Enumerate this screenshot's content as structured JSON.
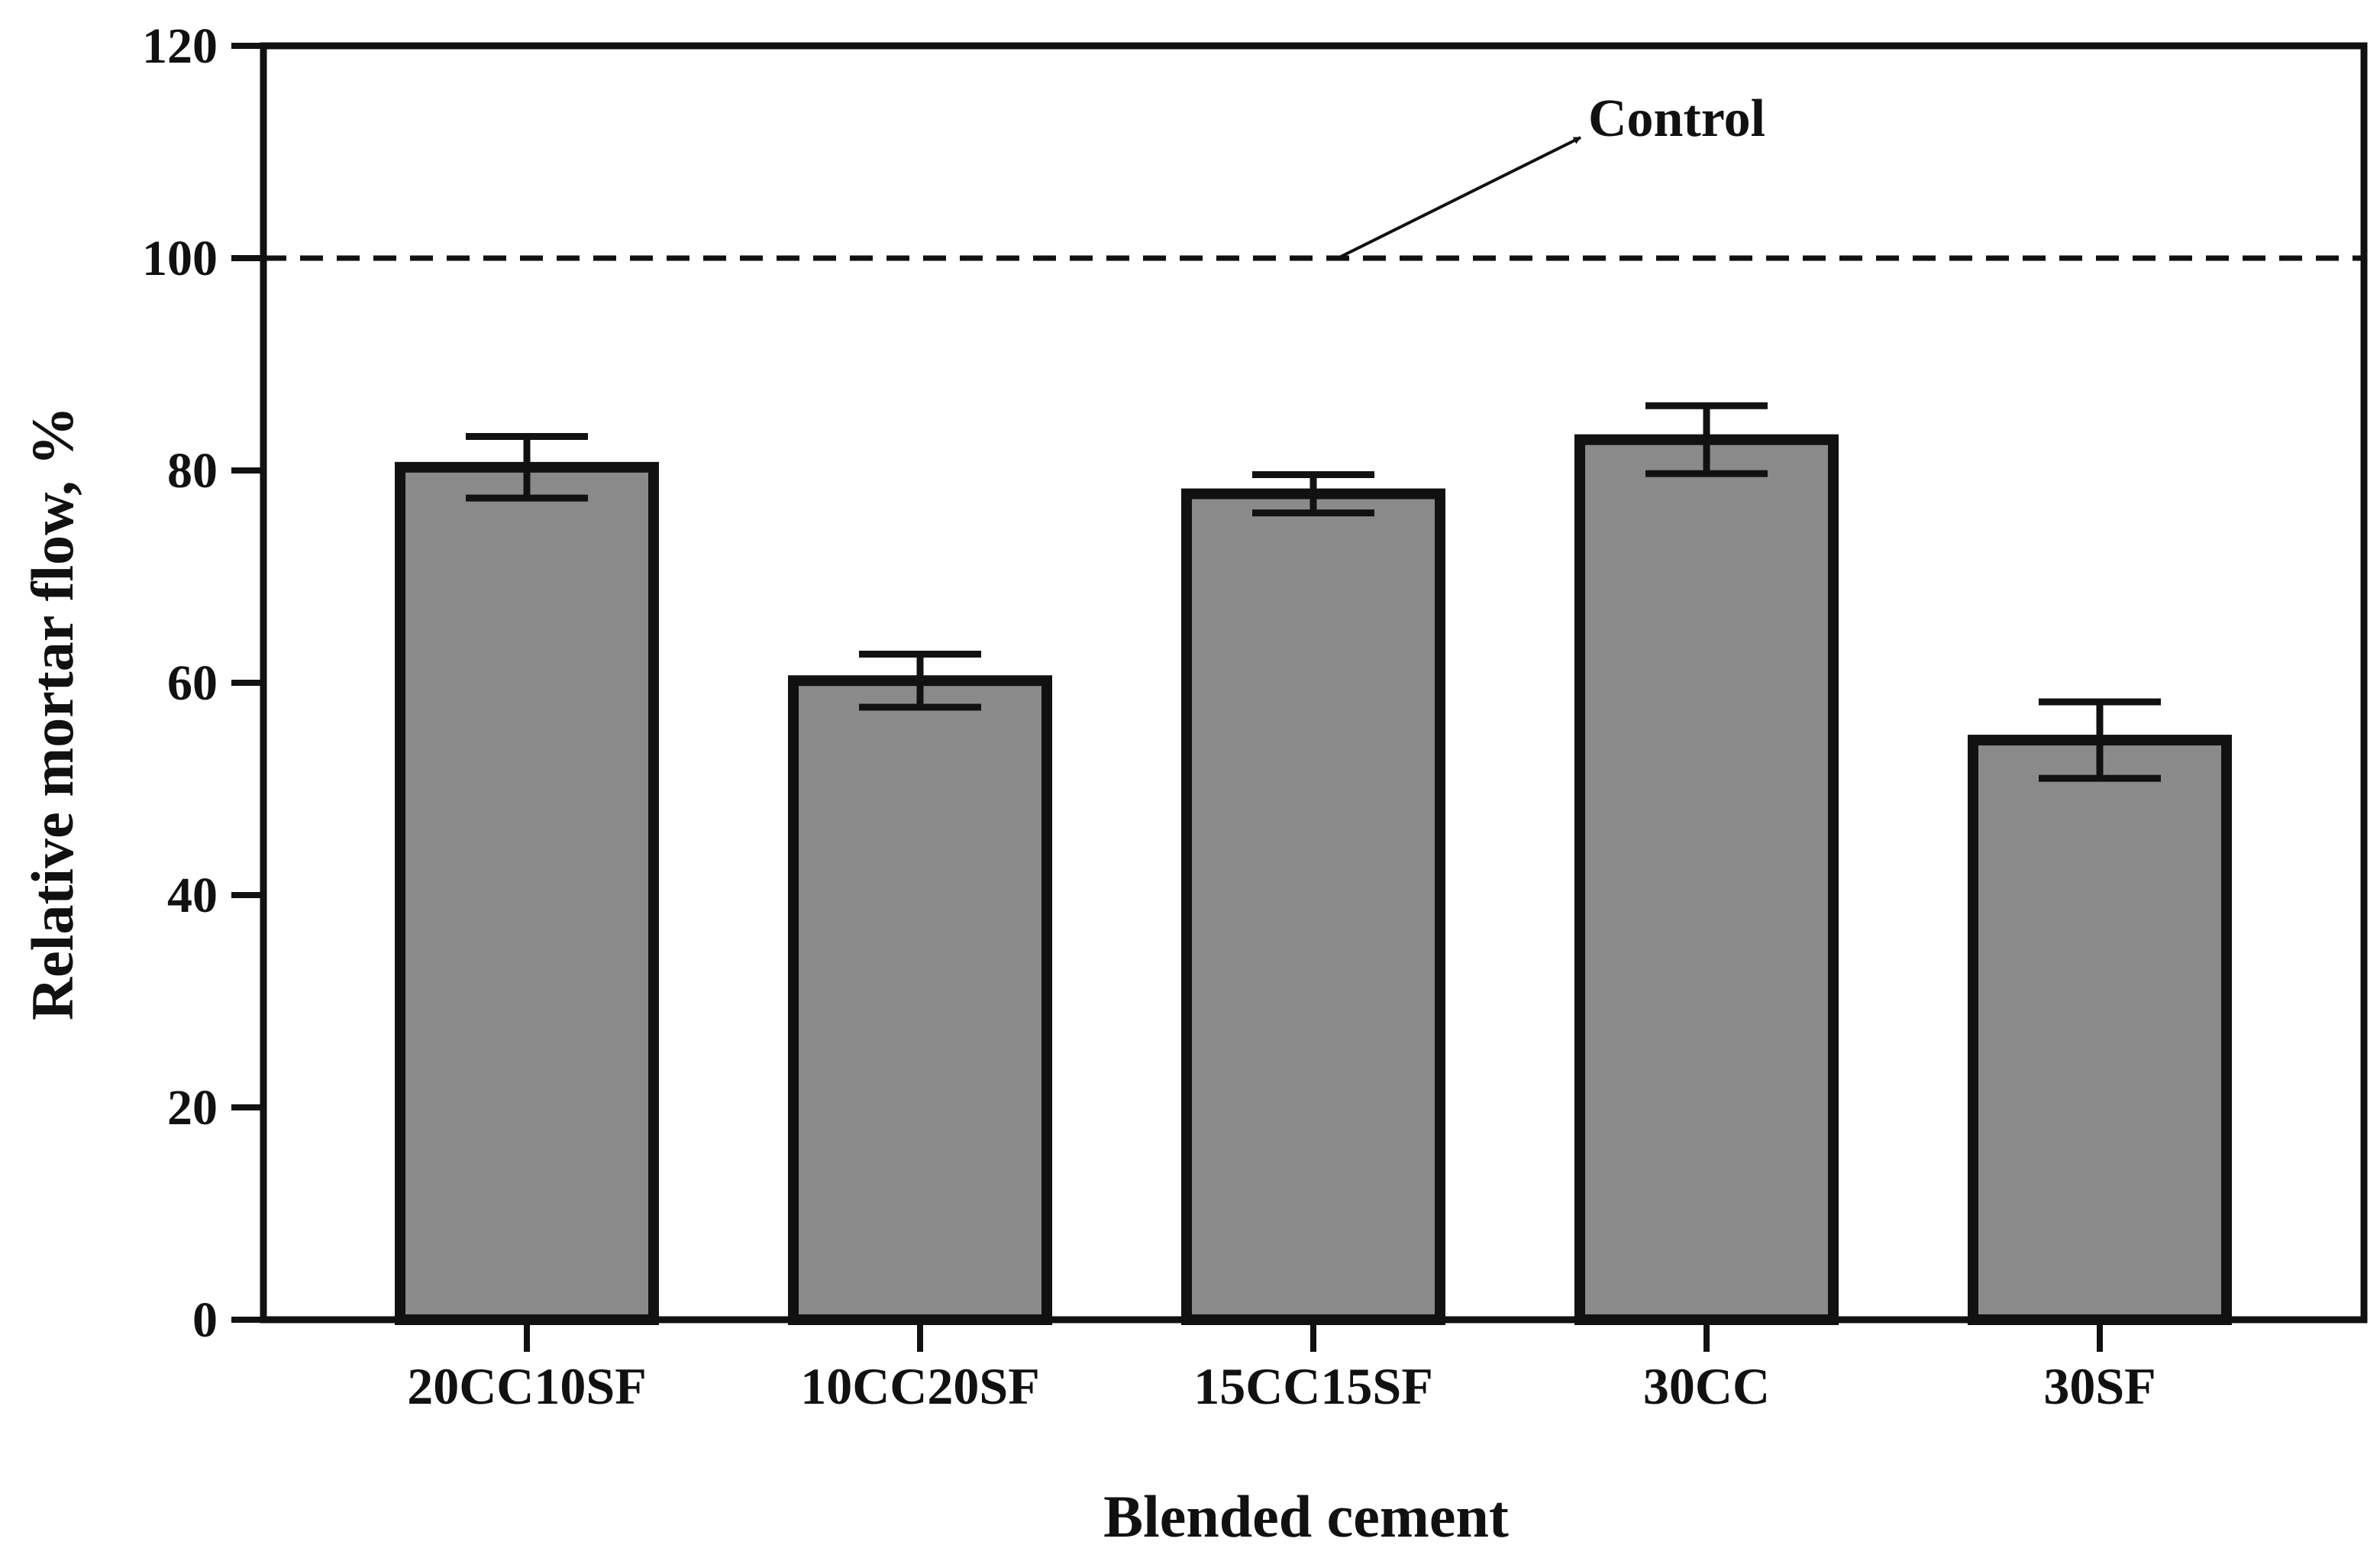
{
  "chart_data": {
    "type": "bar",
    "title": "",
    "xlabel": "Blended cement",
    "ylabel": "Relative mortar flow, %",
    "categories": [
      "20CC10SF",
      "10CC20SF",
      "15CC15SF",
      "30CC",
      "30SF"
    ],
    "values": [
      80.3,
      60.2,
      77.8,
      82.9,
      54.6
    ],
    "error": [
      2.9,
      2.5,
      1.8,
      3.2,
      3.6
    ],
    "ylim": [
      0,
      120
    ],
    "yticks": [
      "0",
      "20",
      "40",
      "60",
      "80",
      "100",
      "120"
    ],
    "reference_line": {
      "value": 100,
      "style": "dashed"
    },
    "annotation": {
      "text": "Control",
      "points_to": 100
    },
    "grid": false,
    "colors": {
      "bar_fill": "#8a8a8a",
      "bar_edge": "#111111",
      "axis": "#111111"
    }
  }
}
